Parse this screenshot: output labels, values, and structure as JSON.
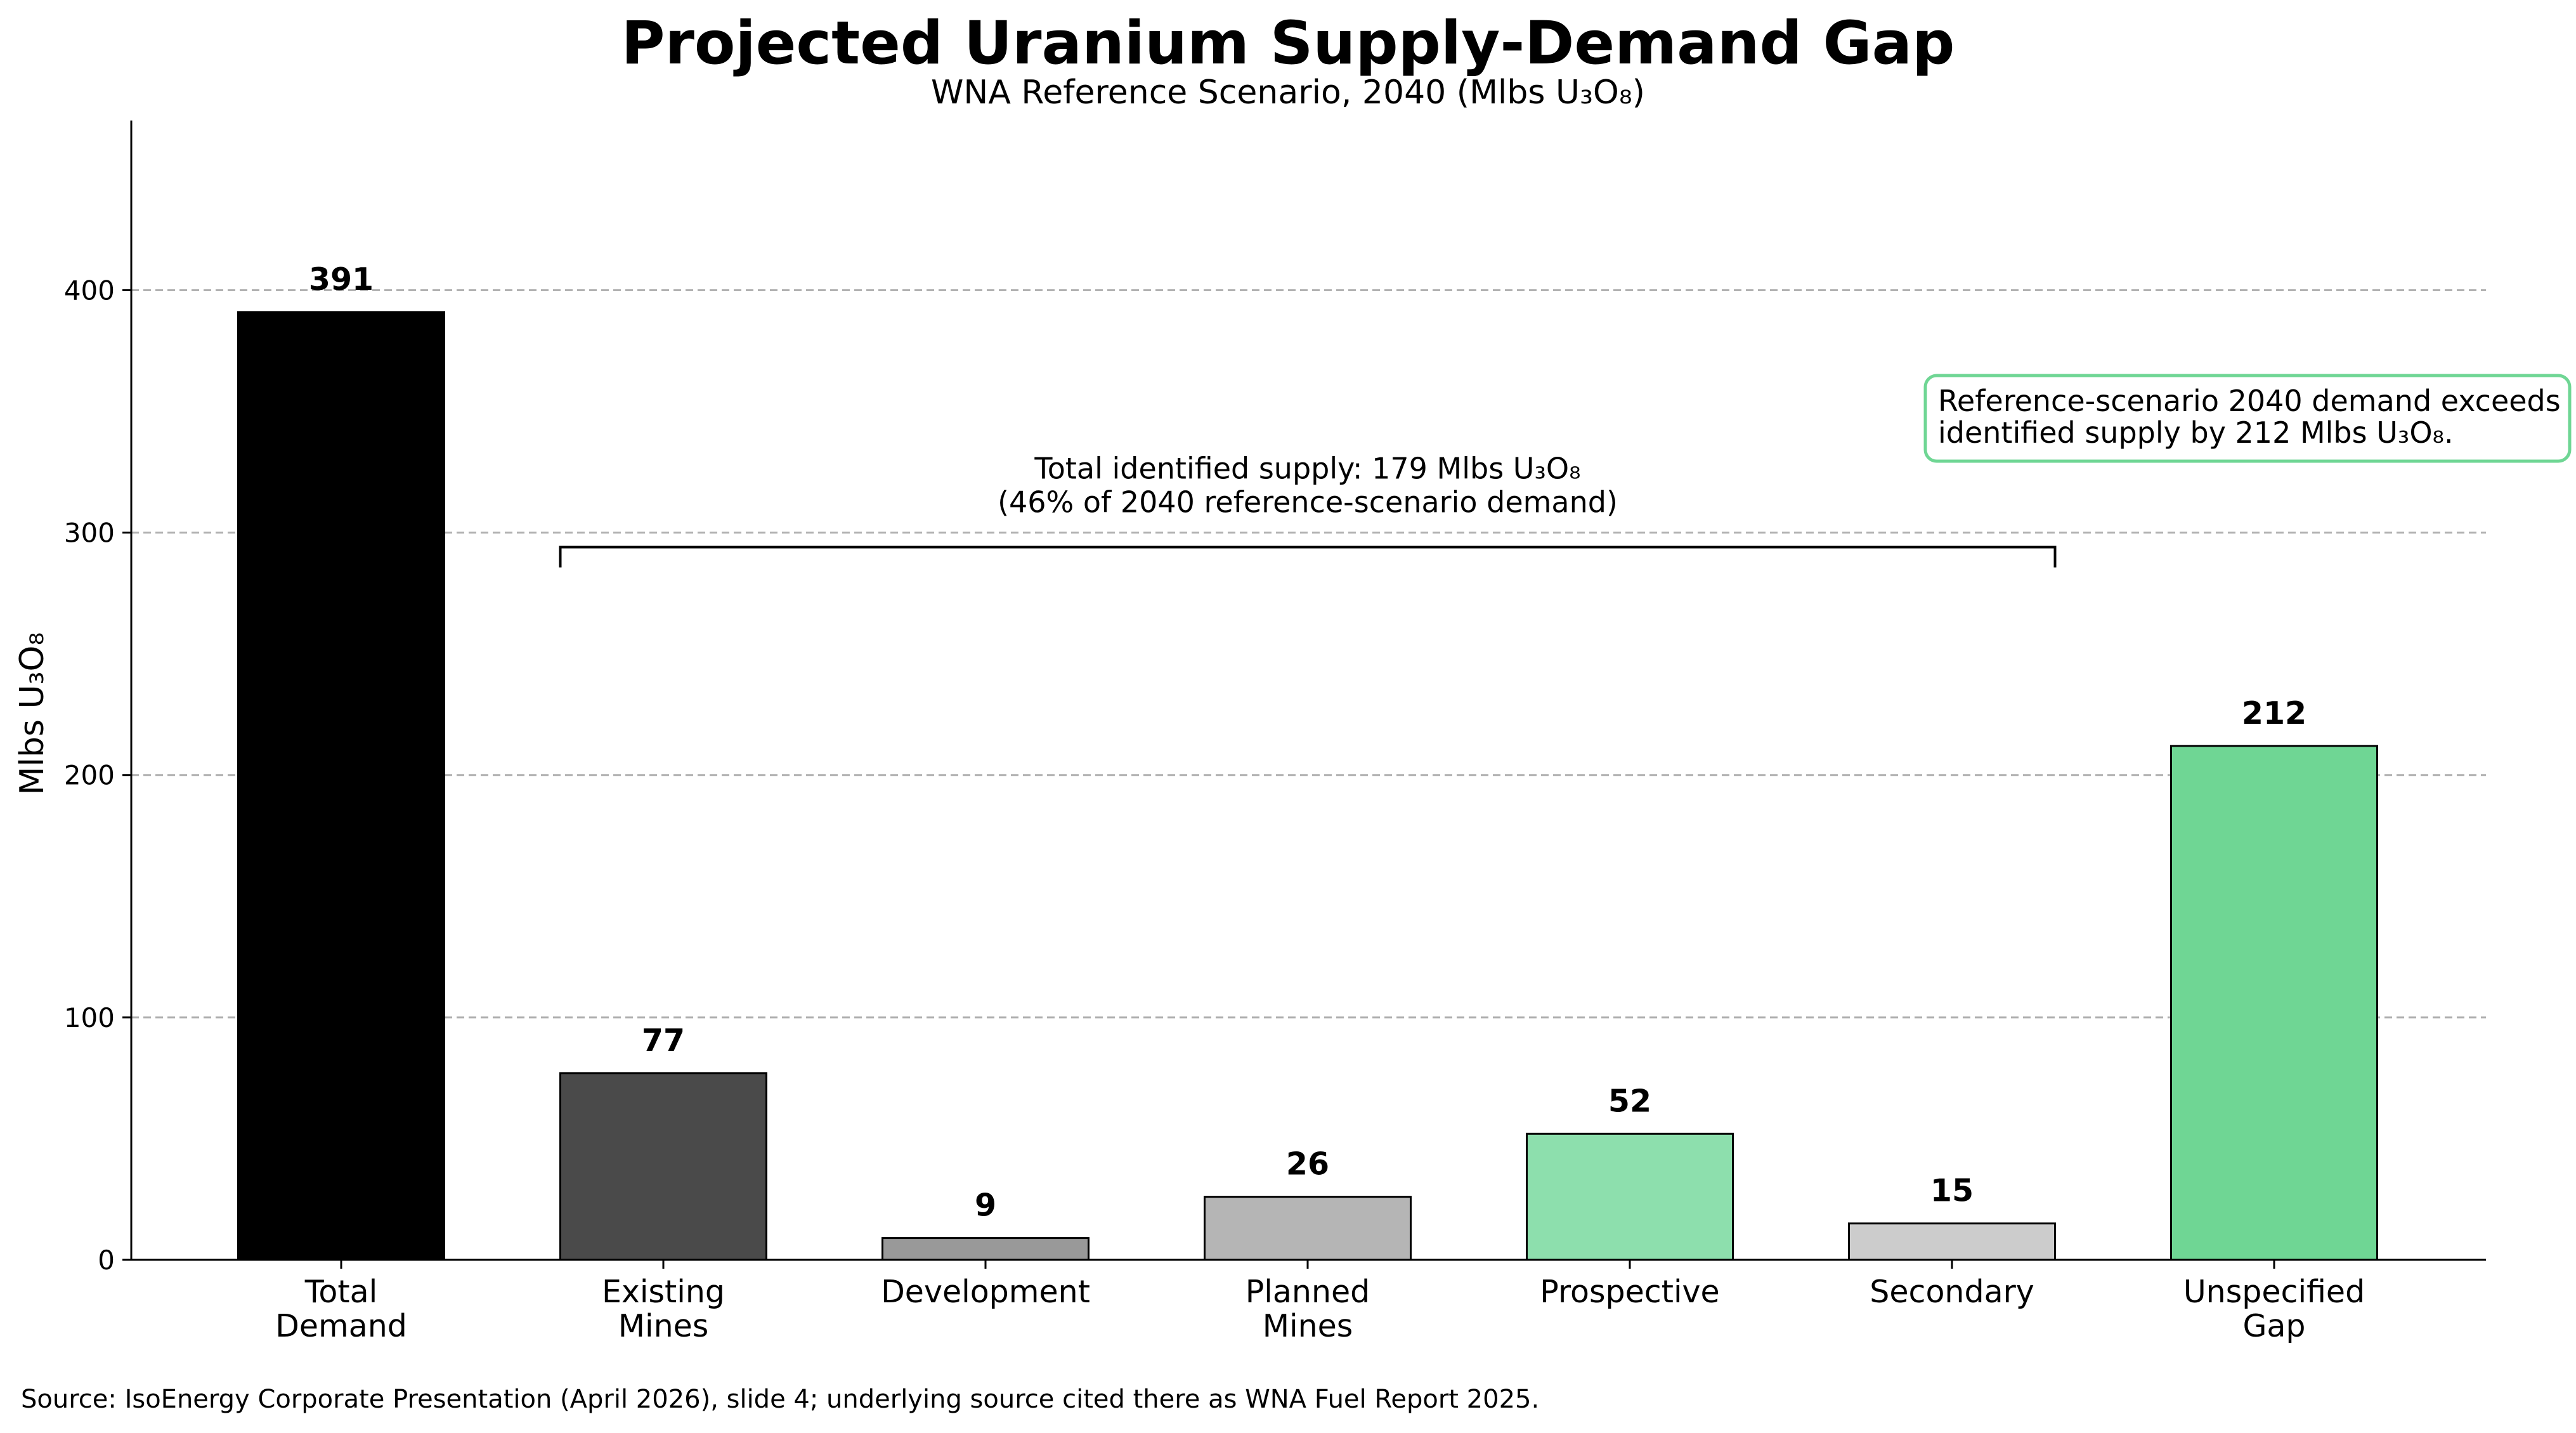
{
  "chart_data": {
    "type": "bar",
    "title": "Projected Uranium Supply-Demand Gap",
    "subtitle": "WNA Reference Scenario, 2040 (Mlbs U₃O₈)",
    "xlabel": "",
    "ylabel": "Mlbs U₃O₈",
    "ylim": [
      0,
      470
    ],
    "yticks": [
      0,
      100,
      200,
      300,
      400
    ],
    "grid": "y-dashed",
    "categories": [
      [
        "Total",
        "Demand"
      ],
      [
        "Existing",
        "Mines"
      ],
      [
        "Development"
      ],
      [
        "Planned",
        "Mines"
      ],
      [
        "Prospective"
      ],
      [
        "Secondary"
      ],
      [
        "Unspecified",
        "Gap"
      ]
    ],
    "values": [
      391,
      77,
      9,
      26,
      52,
      15,
      212
    ],
    "value_labels": [
      "391",
      "77",
      "9",
      "26",
      "52",
      "15",
      "212"
    ],
    "colors": [
      "#000000",
      "#4a4a4a",
      "#999999",
      "#b5b5b5",
      "#8ddfad",
      "#cccccc",
      "#6fd694"
    ],
    "supply_bracket": {
      "from_category": 1,
      "to_category": 5,
      "level": 294,
      "lines": [
        "Total identified supply: 179 Mlbs U₃O₈",
        "(46% of 2040 reference-scenario demand)"
      ]
    },
    "callout": {
      "lines": [
        "Reference-scenario 2040 demand exceeds",
        "identified supply by 212 Mlbs U₃O₈."
      ],
      "border_color": "#6fd694"
    },
    "source": "Source: IsoEnergy Corporate Presentation (April 2026), slide 4; underlying source cited there as WNA Fuel Report 2025."
  }
}
